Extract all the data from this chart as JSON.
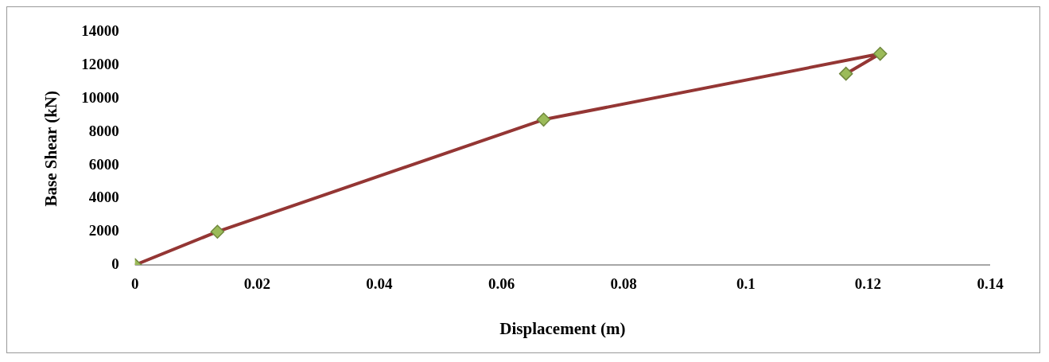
{
  "chart_data": {
    "type": "line",
    "xlabel": "Displacement (m)",
    "ylabel": "Base Shear (kN)",
    "x": [
      0,
      0.0135,
      0.0669,
      0.122,
      0.1164
    ],
    "series": [
      {
        "color": "#943634",
        "values": [
          0,
          2000,
          8740,
          12700,
          11500
        ]
      }
    ],
    "xlim": [
      0,
      0.14
    ],
    "xticks": [
      0,
      0.02,
      0.04,
      0.06,
      0.08,
      0.1,
      0.12,
      0.14
    ],
    "ylim": [
      0,
      14000
    ],
    "yticks": [
      0,
      2000,
      4000,
      6000,
      8000,
      10000,
      12000,
      14000
    ],
    "grid": false,
    "legend": false,
    "marker": "diamond",
    "line_style": "solid"
  }
}
